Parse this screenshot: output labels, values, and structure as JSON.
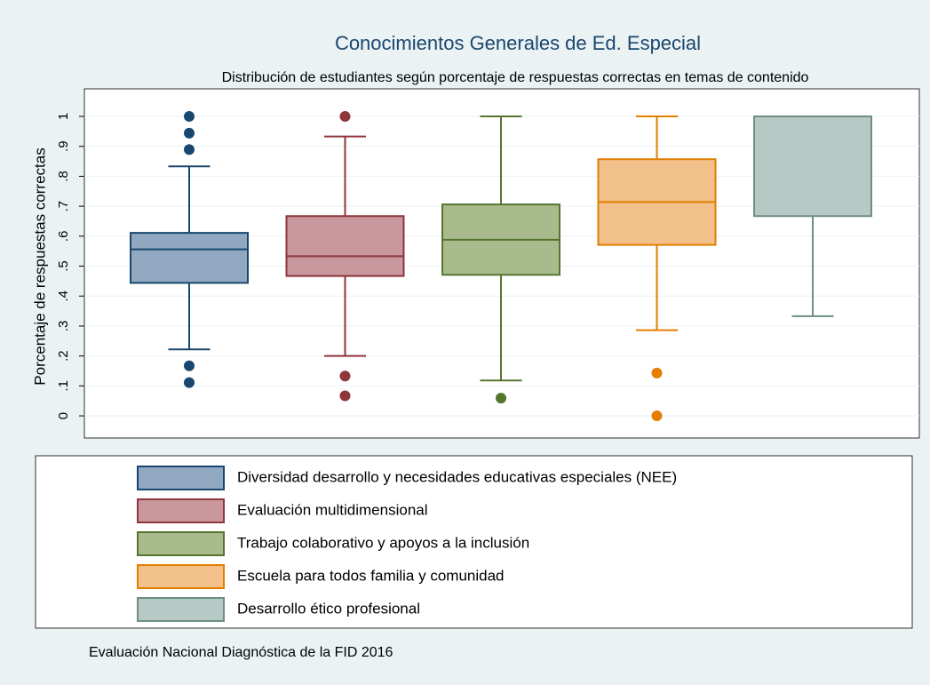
{
  "chart_data": {
    "type": "box",
    "title": "Conocimientos Generales de Ed. Especial",
    "subtitle": "Distribución de estudiantes según porcentaje de respuestas correctas en temas de contenido",
    "y_label": "Porcentaje de respuestas correctas",
    "note": "Evaluación Nacional Diagnóstica de la FID 2016",
    "ylim": [
      -0.074,
      1.092
    ],
    "yticks": [
      0,
      {
        "value": 0.1,
        "label": ".1"
      },
      {
        "value": 0.2,
        "label": ".2"
      },
      {
        "value": 0.3,
        "label": ".3"
      },
      {
        "value": 0.4,
        "label": ".4"
      },
      {
        "value": 0.5,
        "label": ".5"
      },
      {
        "value": 0.6,
        "label": ".6"
      },
      {
        "value": 0.7,
        "label": ".7"
      },
      {
        "value": 0.8,
        "label": ".8"
      },
      {
        "value": 0.9,
        "label": ".9"
      },
      1
    ],
    "grid": true,
    "series": [
      {
        "name": "Diversidad  desarrollo y necesidades educativas especiales (NEE)",
        "color": "#1a476f",
        "fill": "#90a8c0",
        "whisker_low": 0.222,
        "q1": 0.444,
        "median": 0.556,
        "q3": 0.611,
        "whisker_high": 0.833,
        "outliers": [
          1,
          0.944,
          0.889,
          0.167,
          0.111
        ]
      },
      {
        "name": "Evaluación multidimensional",
        "color": "#90353b",
        "fill": "#c8989e",
        "whisker_low": 0.2,
        "q1": 0.467,
        "median": 0.533,
        "q3": 0.667,
        "whisker_high": 0.933,
        "outliers": [
          1,
          0.133,
          0.067
        ]
      },
      {
        "name": "Trabajo colaborativo y apoyos a la inclusión",
        "color": "#55752f",
        "fill": "#a9bb8d",
        "whisker_low": 0.118,
        "q1": 0.471,
        "median": 0.588,
        "q3": 0.706,
        "whisker_high": 1,
        "outliers": [
          0.059
        ]
      },
      {
        "name": "Escuela para todos  familia y comunidad",
        "color": "#e37e00",
        "fill": "#f2c08a",
        "whisker_low": 0.286,
        "q1": 0.571,
        "median": 0.714,
        "q3": 0.857,
        "whisker_high": 1,
        "outliers": [
          0.143,
          0
        ]
      },
      {
        "name": "Desarrollo ético profesional",
        "color": "#6e8e84",
        "fill": "#b7c9c4",
        "whisker_low": 0.333,
        "q1": 0.667,
        "median": 1,
        "q3": 1,
        "whisker_high": 1,
        "outliers": []
      }
    ]
  }
}
